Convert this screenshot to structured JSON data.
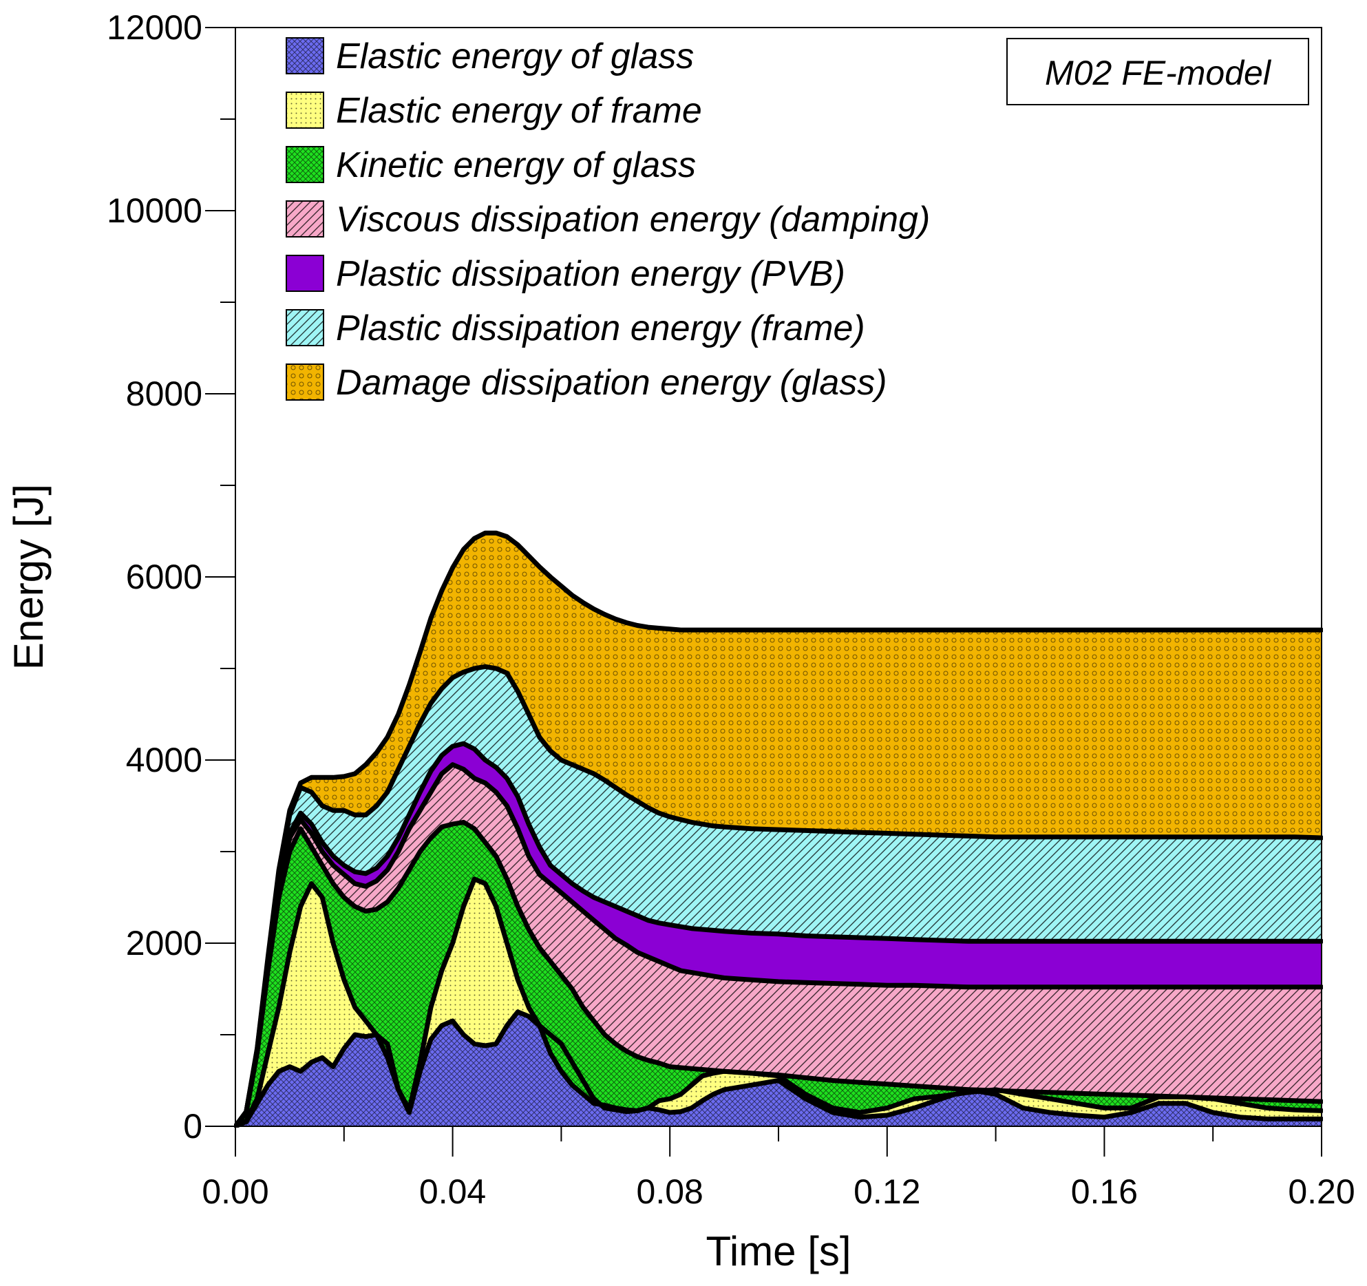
{
  "chart_data": {
    "type": "area",
    "stacked": true,
    "title": "",
    "xlabel": "Time [s]",
    "ylabel": "Energy [J]",
    "xlim": [
      0,
      0.2
    ],
    "ylim": [
      0,
      12000
    ],
    "grid": false,
    "x_ticks": [
      0,
      0.04,
      0.08,
      0.12,
      0.16,
      0.2
    ],
    "x_tick_labels": [
      "0.00",
      "0.04",
      "0.08",
      "0.12",
      "0.16",
      "0.20"
    ],
    "y_ticks": [
      0,
      2000,
      4000,
      6000,
      8000,
      10000,
      12000
    ],
    "y_tick_labels": [
      "0",
      "2000",
      "4000",
      "6000",
      "8000",
      "10000",
      "12000"
    ],
    "legend_position": "top-left",
    "annotation": "M02 FE-model",
    "x": [
      0,
      0.002,
      0.004,
      0.006,
      0.008,
      0.01,
      0.012,
      0.014,
      0.016,
      0.018,
      0.02,
      0.022,
      0.024,
      0.026,
      0.028,
      0.03,
      0.032,
      0.034,
      0.036,
      0.038,
      0.04,
      0.042,
      0.044,
      0.046,
      0.048,
      0.05,
      0.052,
      0.054,
      0.056,
      0.058,
      0.06,
      0.062,
      0.064,
      0.066,
      0.068,
      0.07,
      0.072,
      0.074,
      0.076,
      0.078,
      0.08,
      0.082,
      0.084,
      0.086,
      0.088,
      0.09,
      0.095,
      0.1,
      0.105,
      0.11,
      0.115,
      0.12,
      0.125,
      0.13,
      0.135,
      0.14,
      0.145,
      0.15,
      0.155,
      0.16,
      0.165,
      0.17,
      0.175,
      0.18,
      0.185,
      0.19,
      0.195,
      0.2
    ],
    "cumulative_tops": [
      {
        "name": "Elastic energy of glass",
        "values": [
          0,
          50,
          250,
          450,
          600,
          650,
          600,
          700,
          750,
          650,
          850,
          1000,
          980,
          1000,
          900,
          400,
          150,
          600,
          950,
          1100,
          1150,
          1000,
          900,
          880,
          900,
          1100,
          1250,
          1200,
          1100,
          1000,
          900,
          700,
          500,
          300,
          200,
          180,
          160,
          170,
          200,
          180,
          150,
          160,
          200,
          280,
          350,
          400,
          450,
          500,
          300,
          150,
          100,
          120,
          200,
          300,
          400,
          350,
          200,
          150,
          120,
          100,
          150,
          250,
          250,
          150,
          100,
          80,
          80,
          80
        ]
      },
      {
        "name": "Elastic energy of frame",
        "values": [
          0,
          60,
          300,
          800,
          1300,
          1900,
          2400,
          2650,
          2500,
          2000,
          1600,
          1300,
          1150,
          1000,
          750,
          400,
          180,
          700,
          1300,
          1700,
          2000,
          2400,
          2700,
          2650,
          2400,
          2000,
          1600,
          1300,
          1100,
          800,
          600,
          450,
          350,
          250,
          230,
          200,
          180,
          170,
          200,
          280,
          300,
          350,
          450,
          550,
          580,
          600,
          580,
          550,
          350,
          200,
          150,
          200,
          300,
          330,
          370,
          400,
          350,
          300,
          250,
          200,
          200,
          320,
          320,
          300,
          250,
          200,
          180,
          170
        ]
      },
      {
        "name": "Kinetic energy of glass",
        "values": [
          0,
          150,
          800,
          1700,
          2500,
          3000,
          3250,
          3050,
          2850,
          2650,
          2500,
          2400,
          2350,
          2370,
          2450,
          2600,
          2800,
          3000,
          3150,
          3270,
          3300,
          3320,
          3250,
          3100,
          2950,
          2700,
          2400,
          2150,
          1950,
          1800,
          1650,
          1500,
          1300,
          1150,
          1000,
          900,
          820,
          760,
          720,
          690,
          650,
          640,
          630,
          620,
          610,
          600,
          580,
          560,
          530,
          500,
          480,
          460,
          440,
          420,
          400,
          390,
          380,
          370,
          360,
          350,
          340,
          330,
          320,
          310,
          300,
          290,
          280,
          270
        ]
      },
      {
        "name": "Viscous dissipation energy (damping)",
        "values": [
          0,
          160,
          820,
          1750,
          2600,
          3150,
          3350,
          3200,
          3000,
          2850,
          2750,
          2650,
          2620,
          2680,
          2800,
          3000,
          3250,
          3450,
          3650,
          3850,
          3950,
          3900,
          3800,
          3750,
          3650,
          3500,
          3250,
          2950,
          2750,
          2650,
          2550,
          2450,
          2350,
          2250,
          2150,
          2050,
          1980,
          1900,
          1850,
          1800,
          1750,
          1700,
          1680,
          1660,
          1640,
          1620,
          1600,
          1580,
          1570,
          1560,
          1550,
          1540,
          1540,
          1530,
          1520,
          1520,
          1520,
          1520,
          1520,
          1520,
          1520,
          1520,
          1520,
          1520,
          1520,
          1520,
          1520,
          1520
        ]
      },
      {
        "name": "Plastic dissipation energy (PVB)",
        "values": [
          0,
          160,
          830,
          1780,
          2650,
          3200,
          3420,
          3300,
          3100,
          2950,
          2850,
          2780,
          2760,
          2820,
          2950,
          3150,
          3400,
          3650,
          3880,
          4050,
          4150,
          4180,
          4120,
          4000,
          3920,
          3800,
          3600,
          3300,
          3050,
          2850,
          2750,
          2650,
          2570,
          2500,
          2450,
          2400,
          2350,
          2300,
          2250,
          2220,
          2200,
          2180,
          2160,
          2150,
          2140,
          2130,
          2110,
          2100,
          2080,
          2070,
          2060,
          2050,
          2040,
          2030,
          2020,
          2020,
          2020,
          2020,
          2020,
          2020,
          2020,
          2020,
          2020,
          2020,
          2020,
          2020,
          2020,
          2020
        ]
      },
      {
        "name": "Plastic dissipation energy (frame)",
        "values": [
          0,
          160,
          840,
          1820,
          2750,
          3400,
          3700,
          3650,
          3500,
          3450,
          3450,
          3400,
          3400,
          3500,
          3650,
          3900,
          4150,
          4400,
          4620,
          4780,
          4900,
          4960,
          5000,
          5020,
          5000,
          4950,
          4750,
          4500,
          4250,
          4100,
          4000,
          3950,
          3900,
          3850,
          3780,
          3700,
          3620,
          3550,
          3480,
          3420,
          3380,
          3350,
          3320,
          3300,
          3280,
          3270,
          3250,
          3240,
          3230,
          3220,
          3210,
          3200,
          3190,
          3180,
          3170,
          3160,
          3160,
          3160,
          3160,
          3160,
          3160,
          3160,
          3160,
          3160,
          3160,
          3160,
          3160,
          3150
        ]
      },
      {
        "name": "Damage dissipation energy (glass)",
        "values": [
          0,
          160,
          850,
          1850,
          2800,
          3450,
          3750,
          3810,
          3810,
          3810,
          3820,
          3850,
          3950,
          4080,
          4250,
          4500,
          4820,
          5180,
          5550,
          5850,
          6100,
          6300,
          6420,
          6480,
          6480,
          6440,
          6350,
          6230,
          6110,
          6000,
          5900,
          5800,
          5720,
          5650,
          5590,
          5540,
          5500,
          5470,
          5450,
          5440,
          5430,
          5420,
          5420,
          5420,
          5420,
          5420,
          5420,
          5420,
          5420,
          5420,
          5420,
          5420,
          5420,
          5420,
          5420,
          5420,
          5420,
          5420,
          5420,
          5420,
          5420,
          5420,
          5420,
          5420,
          5420,
          5420,
          5420,
          5420
        ]
      }
    ],
    "series": [
      {
        "name": "Elastic energy of glass",
        "color": "#6b6bf0",
        "pattern": "crosshatch"
      },
      {
        "name": "Elastic energy of frame",
        "color": "#ffff80",
        "pattern": "dots"
      },
      {
        "name": "Kinetic energy of glass",
        "color": "#1fe01f",
        "pattern": "crosshatch"
      },
      {
        "name": "Viscous dissipation energy (damping)",
        "color": "#f7a8c8",
        "pattern": "diagonal"
      },
      {
        "name": "Plastic dissipation energy (PVB)",
        "color": "#8b00d4",
        "pattern": "solid"
      },
      {
        "name": "Plastic dissipation energy (frame)",
        "color": "#9ff5f5",
        "pattern": "diagonal"
      },
      {
        "name": "Damage dissipation energy (glass)",
        "color": "#f2b400",
        "pattern": "circles"
      }
    ]
  }
}
